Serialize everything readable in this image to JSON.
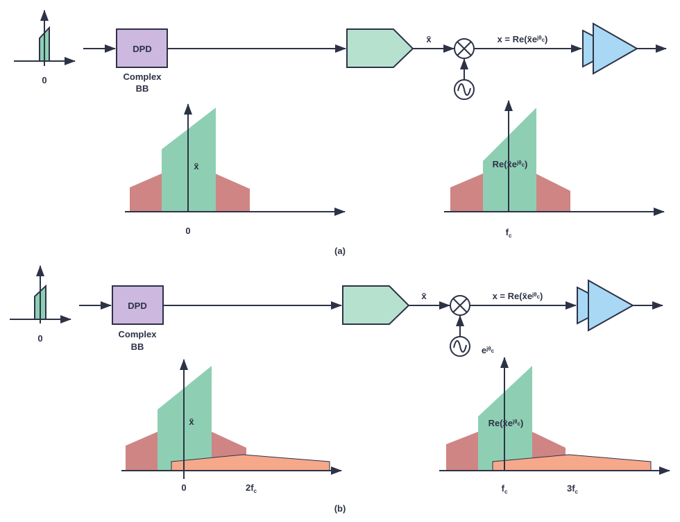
{
  "colors": {
    "dpd": "#cdb8df",
    "dac": "#b7e1cf",
    "signal": "#8ecfb4",
    "distortion": "#cf8584",
    "harmonic": "#f6a88a",
    "amp": "#a8d8f4",
    "line": "#2d3246"
  },
  "panel_a": {
    "caption": "(a)",
    "input_axis_label": "0",
    "dpd_label": "DPD",
    "bb_line1": "Complex",
    "bb_line2": "BB",
    "xtilde": "x̃",
    "out_label": {
      "pre": "x = Re(x̃e",
      "sup": "jθ",
      "sub": "c",
      "post": ")"
    },
    "spec1": {
      "signal_label": "x̃",
      "tick": "0"
    },
    "spec2": {
      "signal_label": {
        "pre": "Re(x̃e",
        "sup": "jθ",
        "sub": "c",
        "post": ")"
      },
      "tick": {
        "main": "f",
        "sub": "c"
      }
    }
  },
  "panel_b": {
    "caption": "(b)",
    "input_axis_label": "0",
    "dpd_label": "DPD",
    "bb_line1": "Complex",
    "bb_line2": "BB",
    "xtilde": "x̃",
    "out_label": {
      "pre": "x = Re(x̃e",
      "sup": "jθ",
      "sub": "c",
      "post": ")"
    },
    "osc_label": {
      "pre": "e",
      "sup": "jθ",
      "sub": "c"
    },
    "spec1": {
      "signal_label": "x̃",
      "tick1": "0",
      "tick2": {
        "main": "2f",
        "sub": "c"
      }
    },
    "spec2": {
      "signal_label": {
        "pre": "Re(x̃e",
        "sup": "jθ",
        "sub": "c",
        "post": ")"
      },
      "tick1": {
        "main": "f",
        "sub": "c"
      },
      "tick2": {
        "main": "3f",
        "sub": "c"
      }
    }
  }
}
